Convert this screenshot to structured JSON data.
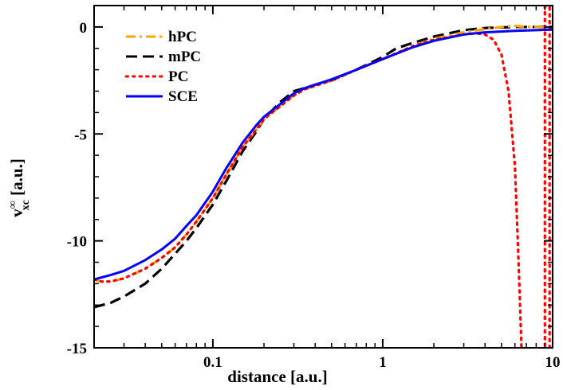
{
  "chart_data": {
    "type": "line",
    "xscale": "log",
    "xlim": [
      0.02,
      10
    ],
    "ylim": [
      -15,
      1
    ],
    "xlabel": "distance [a.u.]",
    "ylabel_main": "v",
    "ylabel_super": "∞",
    "ylabel_sub": "xc",
    "ylabel_units": " [a.u.]",
    "xticks": [
      {
        "value": 0.1,
        "label": "0.1"
      },
      {
        "value": 1,
        "label": "1"
      },
      {
        "value": 10,
        "label": "10"
      }
    ],
    "yticks": [
      {
        "value": 0,
        "label": "0"
      },
      {
        "value": -5,
        "label": "-5"
      },
      {
        "value": -10,
        "label": "-10"
      },
      {
        "value": -15,
        "label": "-15"
      }
    ],
    "legend_position": "top-left",
    "series": [
      {
        "name": "hPC",
        "color": "#ffa500",
        "style": "dashdot",
        "points": [
          [
            0.02,
            -11.8
          ],
          [
            0.022,
            -11.9
          ],
          [
            0.025,
            -11.9
          ],
          [
            0.03,
            -11.75
          ],
          [
            0.04,
            -11.3
          ],
          [
            0.05,
            -10.8
          ],
          [
            0.06,
            -10.3
          ],
          [
            0.07,
            -9.7
          ],
          [
            0.08,
            -9.1
          ],
          [
            0.1,
            -8.0
          ],
          [
            0.12,
            -6.9
          ],
          [
            0.15,
            -5.6
          ],
          [
            0.18,
            -4.8
          ],
          [
            0.2,
            -4.3
          ],
          [
            0.25,
            -3.7
          ],
          [
            0.3,
            -3.2
          ],
          [
            0.35,
            -2.9
          ],
          [
            0.4,
            -2.75
          ],
          [
            0.5,
            -2.5
          ],
          [
            0.7,
            -2.0
          ],
          [
            1.0,
            -1.5
          ],
          [
            1.5,
            -0.9
          ],
          [
            2.0,
            -0.55
          ],
          [
            3.0,
            -0.25
          ],
          [
            4.0,
            -0.1
          ],
          [
            5.0,
            0.0
          ],
          [
            6.0,
            0.05
          ],
          [
            7.0,
            0.0
          ],
          [
            8.0,
            0.0
          ],
          [
            10.0,
            -0.05
          ]
        ]
      },
      {
        "name": "mPC",
        "color": "#000000",
        "style": "dashed",
        "points": [
          [
            0.02,
            -13.1
          ],
          [
            0.025,
            -12.9
          ],
          [
            0.03,
            -12.6
          ],
          [
            0.04,
            -12.0
          ],
          [
            0.05,
            -11.3
          ],
          [
            0.06,
            -10.6
          ],
          [
            0.07,
            -10.0
          ],
          [
            0.08,
            -9.4
          ],
          [
            0.1,
            -8.3
          ],
          [
            0.12,
            -7.2
          ],
          [
            0.15,
            -5.8
          ],
          [
            0.18,
            -4.9
          ],
          [
            0.2,
            -4.3
          ],
          [
            0.25,
            -3.5
          ],
          [
            0.3,
            -3.0
          ],
          [
            0.35,
            -2.85
          ],
          [
            0.4,
            -2.7
          ],
          [
            0.5,
            -2.5
          ],
          [
            0.7,
            -2.0
          ],
          [
            1.0,
            -1.4
          ],
          [
            1.2,
            -1.0
          ],
          [
            1.5,
            -0.75
          ],
          [
            2.0,
            -0.45
          ],
          [
            3.0,
            -0.15
          ],
          [
            4.0,
            -0.05
          ],
          [
            6.0,
            0.0
          ],
          [
            10.0,
            0.0
          ]
        ]
      },
      {
        "name": "PC",
        "color": "#ff0000",
        "style": "dotted",
        "points": [
          [
            0.02,
            -11.8
          ],
          [
            0.022,
            -11.9
          ],
          [
            0.025,
            -11.9
          ],
          [
            0.03,
            -11.75
          ],
          [
            0.04,
            -11.3
          ],
          [
            0.05,
            -10.8
          ],
          [
            0.06,
            -10.3
          ],
          [
            0.07,
            -9.7
          ],
          [
            0.08,
            -9.1
          ],
          [
            0.1,
            -8.0
          ],
          [
            0.12,
            -6.9
          ],
          [
            0.15,
            -5.6
          ],
          [
            0.18,
            -4.8
          ],
          [
            0.2,
            -4.3
          ],
          [
            0.25,
            -3.7
          ],
          [
            0.3,
            -3.2
          ],
          [
            0.35,
            -2.9
          ],
          [
            0.4,
            -2.75
          ],
          [
            0.5,
            -2.5
          ],
          [
            0.7,
            -2.0
          ],
          [
            1.0,
            -1.5
          ],
          [
            1.5,
            -0.9
          ],
          [
            2.0,
            -0.6
          ],
          [
            3.0,
            -0.35
          ],
          [
            3.5,
            -0.3
          ],
          [
            4.0,
            -0.35
          ],
          [
            4.5,
            -0.6
          ],
          [
            5.0,
            -1.3
          ],
          [
            5.5,
            -3.0
          ],
          [
            6.0,
            -6.5
          ],
          [
            6.2,
            -9.5
          ],
          [
            6.4,
            -12.5
          ],
          [
            6.55,
            -15.0
          ]
        ],
        "extra_lines": [
          [
            [
              9.0,
              1.0
            ],
            [
              9.0,
              -15.0
            ]
          ],
          [
            [
              9.6,
              -15.0
            ],
            [
              9.6,
              1.0
            ]
          ]
        ]
      },
      {
        "name": "SCE",
        "color": "#0000ff",
        "style": "solid",
        "points": [
          [
            0.02,
            -11.8
          ],
          [
            0.025,
            -11.6
          ],
          [
            0.03,
            -11.4
          ],
          [
            0.04,
            -10.9
          ],
          [
            0.05,
            -10.4
          ],
          [
            0.06,
            -9.9
          ],
          [
            0.07,
            -9.3
          ],
          [
            0.08,
            -8.8
          ],
          [
            0.1,
            -7.7
          ],
          [
            0.12,
            -6.6
          ],
          [
            0.15,
            -5.4
          ],
          [
            0.18,
            -4.6
          ],
          [
            0.2,
            -4.2
          ],
          [
            0.25,
            -3.6
          ],
          [
            0.3,
            -3.1
          ],
          [
            0.35,
            -2.85
          ],
          [
            0.4,
            -2.7
          ],
          [
            0.5,
            -2.45
          ],
          [
            0.7,
            -2.0
          ],
          [
            1.0,
            -1.5
          ],
          [
            1.5,
            -0.95
          ],
          [
            2.0,
            -0.65
          ],
          [
            3.0,
            -0.35
          ],
          [
            4.0,
            -0.25
          ],
          [
            6.0,
            -0.18
          ],
          [
            8.0,
            -0.15
          ],
          [
            10.0,
            -0.12
          ]
        ]
      }
    ]
  }
}
